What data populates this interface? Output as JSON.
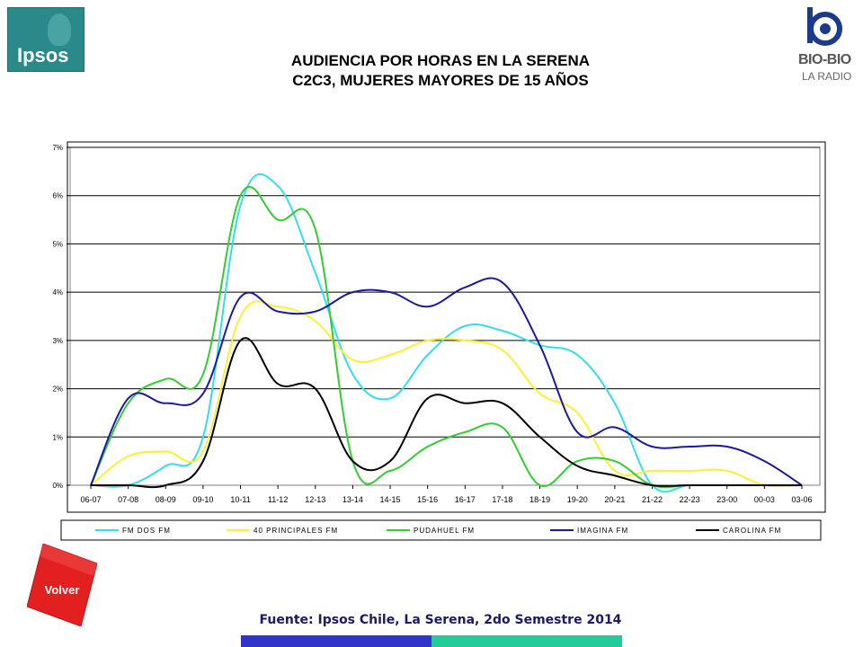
{
  "header": {
    "ipsos_logo_text": "Ipsos",
    "bio_logo_name": "BIO-BIO",
    "bio_logo_sub": "LA RADIO",
    "title_line1": "AUDIENCIA POR HORAS EN LA SERENA",
    "title_line2": "C2C3, MUJERES MAYORES DE 15 AÑOS"
  },
  "volver_label": "Volver",
  "source": "Fuente: Ipsos Chile, La Serena, 2do Semestre 2014",
  "colors": {
    "bar_blue": "#3333cc",
    "bar_teal": "#22cc99",
    "volver_red": "#e32020"
  },
  "chart_data": {
    "type": "line",
    "title": "",
    "xlabel": "",
    "ylabel": "",
    "categories": [
      "06-07",
      "07-08",
      "08-09",
      "09-10",
      "10-11",
      "11-12",
      "12-13",
      "13-14",
      "14-15",
      "15-16",
      "16-17",
      "17-18",
      "18-19",
      "19-20",
      "20-21",
      "21-22",
      "22-23",
      "23-00",
      "00-03",
      "03-06"
    ],
    "y_ticks": [
      "0%",
      "1%",
      "2%",
      "3%",
      "4%",
      "5%",
      "6%",
      "7%"
    ],
    "ylim": [
      0,
      7
    ],
    "grid": true,
    "legend_position": "bottom",
    "series": [
      {
        "name": "FM DOS FM",
        "color": "#33ddee",
        "values": [
          0.0,
          0.0,
          0.4,
          1.0,
          5.8,
          6.2,
          4.4,
          2.3,
          1.8,
          2.7,
          3.3,
          3.2,
          2.9,
          2.7,
          1.7,
          0.0,
          0.0,
          0.0,
          0.0,
          0.0
        ]
      },
      {
        "name": "40 PRINCIPALES FM",
        "color": "#ffee33",
        "values": [
          0.0,
          0.6,
          0.7,
          0.7,
          3.5,
          3.7,
          3.4,
          2.6,
          2.7,
          3.0,
          3.0,
          2.8,
          1.9,
          1.5,
          0.3,
          0.3,
          0.3,
          0.3,
          0.0,
          0.0
        ]
      },
      {
        "name": "PUDAHUEL FM",
        "color": "#33cc33",
        "values": [
          0.0,
          1.7,
          2.2,
          2.3,
          6.0,
          5.5,
          5.3,
          0.5,
          0.3,
          0.8,
          1.1,
          1.2,
          0.0,
          0.5,
          0.5,
          0.0,
          0.0,
          0.0,
          0.0,
          0.0
        ]
      },
      {
        "name": "IMAGINA FM",
        "color": "#1a1aa0",
        "values": [
          0.0,
          1.8,
          1.7,
          1.9,
          3.9,
          3.6,
          3.6,
          4.0,
          4.0,
          3.7,
          4.1,
          4.2,
          2.9,
          1.1,
          1.2,
          0.8,
          0.8,
          0.8,
          0.5,
          0.0
        ]
      },
      {
        "name": "CAROLINA FM",
        "color": "#000000",
        "values": [
          0.0,
          0.0,
          0.0,
          0.5,
          3.0,
          2.1,
          2.0,
          0.5,
          0.5,
          1.8,
          1.7,
          1.7,
          1.0,
          0.4,
          0.2,
          0.0,
          0.0,
          0.0,
          0.0,
          0.0
        ]
      }
    ]
  }
}
